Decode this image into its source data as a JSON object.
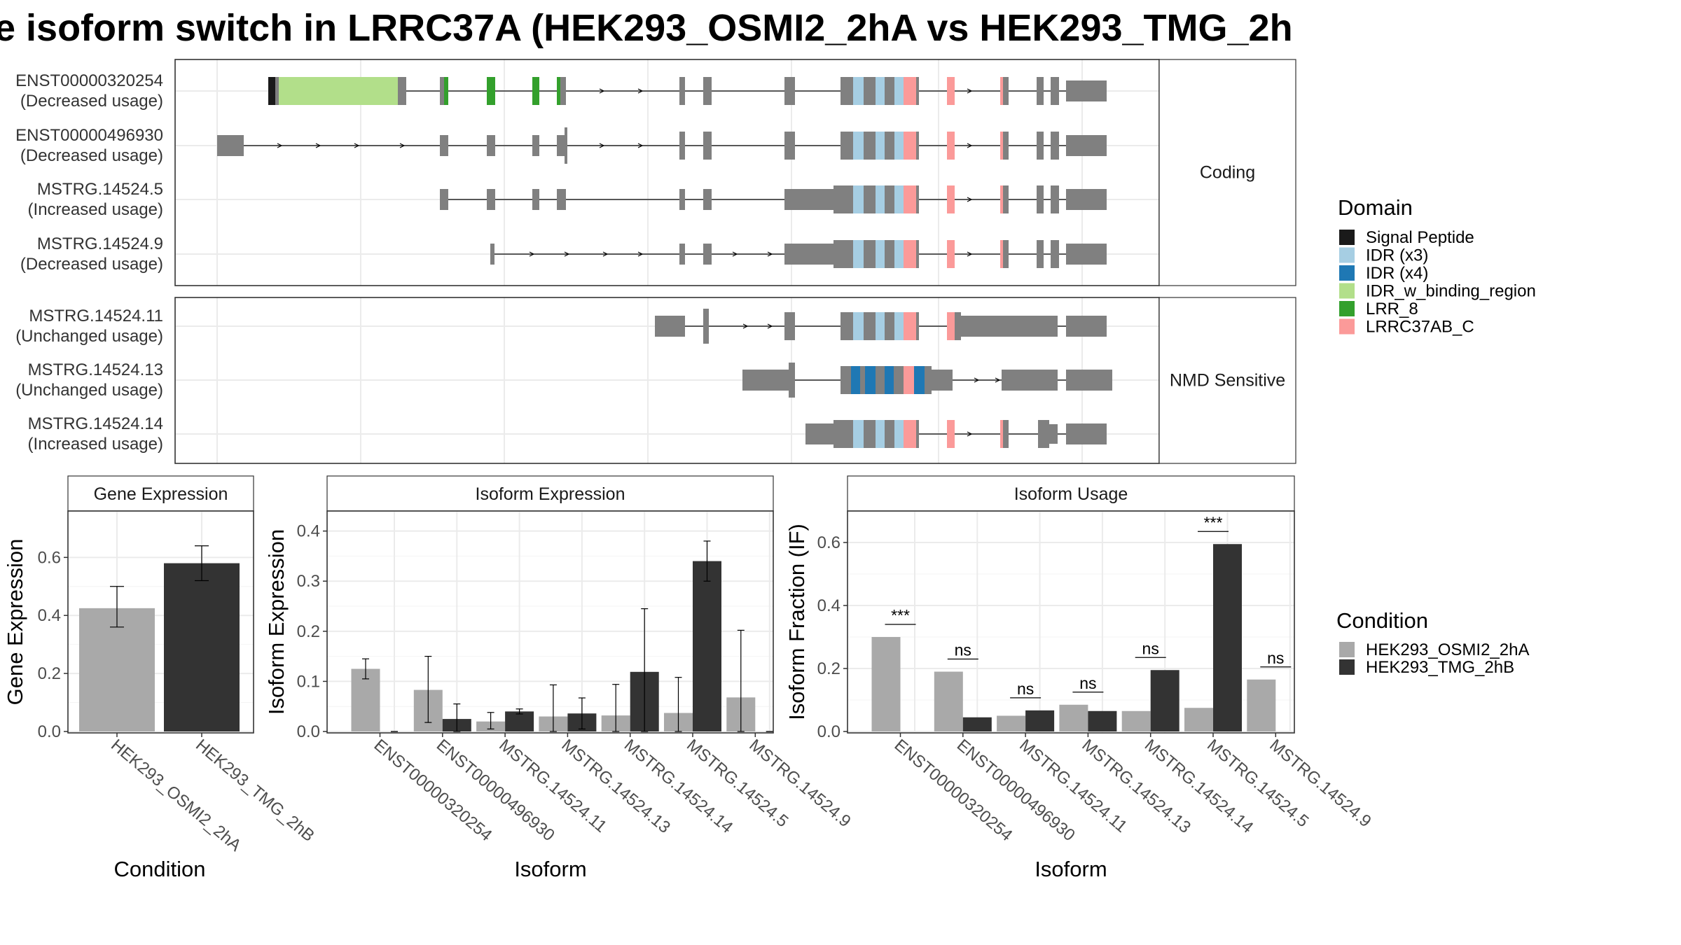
{
  "title": "e isoform switch in LRRC37A (HEK293_OSMI2_2hA vs HEK293_TMG_2h",
  "colors": {
    "cond1": "#a9a9a9",
    "cond2": "#333333",
    "exon": "#808080",
    "domains": {
      "Signal Peptide": "#1a1a1a",
      "IDR (x3)": "#a6cee3",
      "IDR (x4)": "#1f78b4",
      "IDR_w_binding_region": "#b2df8a",
      "LRR_8": "#33a02c",
      "LRRC37AB_C": "#fb9a99"
    }
  },
  "structure": {
    "panels": [
      {
        "label": "Coding",
        "isoforms": [
          {
            "name": "ENST00000320254",
            "usage": "(Decreased usage)"
          },
          {
            "name": "ENST00000496930",
            "usage": "(Decreased usage)"
          },
          {
            "name": "MSTRG.14524.5",
            "usage": "(Increased usage)"
          },
          {
            "name": "MSTRG.14524.9",
            "usage": "(Decreased usage)"
          }
        ]
      },
      {
        "label": "NMD Sensitive",
        "isoforms": [
          {
            "name": "MSTRG.14524.11",
            "usage": "(Unchanged usage)"
          },
          {
            "name": "MSTRG.14524.13",
            "usage": "(Unchanged usage)"
          },
          {
            "name": "MSTRG.14524.14",
            "usage": "(Increased usage)"
          }
        ]
      }
    ]
  },
  "legend_domain": {
    "title": "Domain",
    "items": [
      "Signal Peptide",
      "IDR (x3)",
      "IDR (x4)",
      "IDR_w_binding_region",
      "LRR_8",
      "LRRC37AB_C"
    ]
  },
  "legend_condition": {
    "title": "Condition",
    "items": [
      "HEK293_OSMI2_2hA",
      "HEK293_TMG_2hB"
    ]
  },
  "chart_data": [
    {
      "type": "bar",
      "title": "Gene Expression",
      "xlabel": "Condition",
      "ylabel": "Gene Expression",
      "categories": [
        "HEK293_OSMI2_2hA",
        "HEK293_TMG_2hB"
      ],
      "values": [
        0.425,
        0.58
      ],
      "errors": [
        [
          0.36,
          0.5
        ],
        [
          0.52,
          0.64
        ]
      ],
      "ylim": [
        0,
        0.76
      ],
      "yticks": [
        0.0,
        0.2,
        0.4,
        0.6
      ]
    },
    {
      "type": "bar",
      "title": "Isoform Expression",
      "xlabel": "Isoform",
      "ylabel": "Isoform Expression",
      "categories": [
        "ENST00000320254",
        "ENST00000496930",
        "MSTRG.14524.11",
        "MSTRG.14524.13",
        "MSTRG.14524.14",
        "MSTRG.14524.5",
        "MSTRG.14524.9"
      ],
      "series": [
        {
          "name": "HEK293_OSMI2_2hA",
          "values": [
            0.125,
            0.083,
            0.02,
            0.03,
            0.032,
            0.037,
            0.068
          ],
          "errors": [
            [
              0.105,
              0.145
            ],
            [
              0.018,
              0.15
            ],
            [
              0.005,
              0.038
            ],
            [
              0.0,
              0.093
            ],
            [
              0.0,
              0.094
            ],
            [
              0.0,
              0.108
            ],
            [
              0.0,
              0.202
            ]
          ]
        },
        {
          "name": "HEK293_TMG_2hB",
          "values": [
            0.0,
            0.025,
            0.04,
            0.036,
            0.119,
            0.34,
            0.0
          ],
          "errors": [
            [
              0.0,
              0.0
            ],
            [
              0.0,
              0.055
            ],
            [
              0.035,
              0.045
            ],
            [
              0.005,
              0.067
            ],
            [
              0.0,
              0.245
            ],
            [
              0.3,
              0.38
            ],
            [
              0.0,
              0.0
            ]
          ]
        }
      ],
      "ylim": [
        0,
        0.44
      ],
      "yticks": [
        0.0,
        0.1,
        0.2,
        0.3,
        0.4
      ]
    },
    {
      "type": "bar",
      "title": "Isoform Usage",
      "xlabel": "Isoform",
      "ylabel": "Isoform Fraction (IF)",
      "categories": [
        "ENST00000320254",
        "ENST00000496930",
        "MSTRG.14524.11",
        "MSTRG.14524.13",
        "MSTRG.14524.14",
        "MSTRG.14524.5",
        "MSTRG.14524.9"
      ],
      "series": [
        {
          "name": "HEK293_OSMI2_2hA",
          "values": [
            0.3,
            0.19,
            0.05,
            0.085,
            0.065,
            0.075,
            0.165
          ]
        },
        {
          "name": "HEK293_TMG_2hB",
          "values": [
            0.0,
            0.045,
            0.067,
            0.065,
            0.195,
            0.595,
            0.0
          ]
        }
      ],
      "significance": [
        "***",
        "ns",
        "ns",
        "ns",
        "ns",
        "***",
        "ns"
      ],
      "ylim": [
        0,
        0.7
      ],
      "yticks": [
        0.0,
        0.2,
        0.4,
        0.6
      ]
    }
  ]
}
